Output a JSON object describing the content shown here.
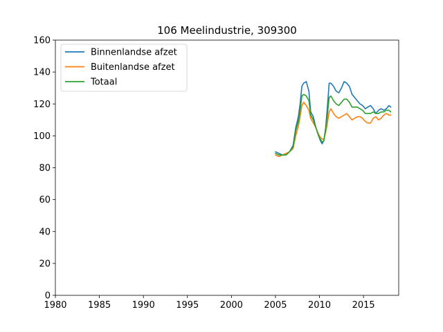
{
  "chart_data": {
    "type": "line",
    "title": "106 Meelindustrie, 309300",
    "xlabel": "",
    "ylabel": "",
    "xlim": [
      1980,
      2019
    ],
    "ylim": [
      0,
      160
    ],
    "x_ticks": [
      1980,
      1985,
      1990,
      1995,
      2000,
      2005,
      2010,
      2015
    ],
    "y_ticks": [
      0,
      20,
      40,
      60,
      80,
      100,
      120,
      140,
      160
    ],
    "grid": false,
    "legend": "top-left",
    "series": [
      {
        "name": "Binnenlandse afzet",
        "color": "#1f77b4",
        "x": [
          2005.0,
          2005.4,
          2005.8,
          2006.2,
          2006.6,
          2007.0,
          2007.3,
          2007.6,
          2007.8,
          2008.0,
          2008.2,
          2008.5,
          2008.8,
          2009.0,
          2009.3,
          2009.6,
          2009.9,
          2010.1,
          2010.3,
          2010.5,
          2010.7,
          2010.9,
          2011.1,
          2011.3,
          2011.6,
          2011.9,
          2012.2,
          2012.5,
          2012.8,
          2013.1,
          2013.4,
          2013.7,
          2014.0,
          2014.3,
          2014.6,
          2014.9,
          2015.2,
          2015.5,
          2015.8,
          2016.1,
          2016.4,
          2016.7,
          2017.0,
          2017.3,
          2017.6,
          2017.9,
          2018.1
        ],
        "y": [
          90,
          89,
          88,
          88,
          90,
          94,
          105,
          112,
          120,
          131,
          133,
          134,
          128,
          115,
          112,
          105,
          100,
          97,
          95,
          97,
          105,
          118,
          133,
          133,
          131,
          128,
          127,
          130,
          134,
          133,
          131,
          126,
          124,
          122,
          120,
          119,
          117,
          118,
          119,
          117,
          114,
          116,
          117,
          116,
          117,
          119,
          118
        ]
      },
      {
        "name": "Buitenlandse afzet",
        "color": "#ff7f0e",
        "x": [
          2005.0,
          2005.4,
          2005.8,
          2006.2,
          2006.6,
          2007.0,
          2007.3,
          2007.6,
          2007.8,
          2008.0,
          2008.2,
          2008.5,
          2008.8,
          2009.0,
          2009.3,
          2009.6,
          2009.9,
          2010.1,
          2010.3,
          2010.5,
          2010.7,
          2010.9,
          2011.1,
          2011.3,
          2011.6,
          2011.9,
          2012.2,
          2012.5,
          2012.8,
          2013.1,
          2013.4,
          2013.7,
          2014.0,
          2014.3,
          2014.6,
          2014.9,
          2015.2,
          2015.5,
          2015.8,
          2016.1,
          2016.4,
          2016.7,
          2017.0,
          2017.3,
          2017.6,
          2017.9,
          2018.1
        ],
        "y": [
          88,
          87,
          88,
          89,
          90,
          92,
          100,
          106,
          112,
          119,
          121,
          119,
          116,
          111,
          108,
          105,
          101,
          99,
          98,
          98,
          102,
          108,
          115,
          117,
          114,
          112,
          111,
          112,
          113,
          114,
          112,
          110,
          111,
          112,
          112,
          111,
          109,
          108,
          108,
          111,
          112,
          110,
          111,
          113,
          114,
          113,
          113
        ]
      },
      {
        "name": "Totaal",
        "color": "#2ca02c",
        "x": [
          2005.0,
          2005.4,
          2005.8,
          2006.2,
          2006.6,
          2007.0,
          2007.3,
          2007.6,
          2007.8,
          2008.0,
          2008.2,
          2008.5,
          2008.8,
          2009.0,
          2009.3,
          2009.6,
          2009.9,
          2010.1,
          2010.3,
          2010.5,
          2010.7,
          2010.9,
          2011.1,
          2011.3,
          2011.6,
          2011.9,
          2012.2,
          2012.5,
          2012.8,
          2013.1,
          2013.4,
          2013.7,
          2014.0,
          2014.3,
          2014.6,
          2014.9,
          2015.2,
          2015.5,
          2015.8,
          2016.1,
          2016.4,
          2016.7,
          2017.0,
          2017.3,
          2017.6,
          2017.9,
          2018.1
        ],
        "y": [
          89,
          88,
          88,
          88,
          90,
          93,
          103,
          109,
          116,
          125,
          126,
          125,
          122,
          113,
          110,
          105,
          100,
          98,
          96,
          97,
          104,
          113,
          124,
          125,
          122,
          120,
          119,
          121,
          123,
          123,
          121,
          118,
          118,
          118,
          117,
          116,
          114,
          114,
          114,
          115,
          114,
          114,
          115,
          115,
          116,
          116,
          115
        ]
      }
    ]
  }
}
